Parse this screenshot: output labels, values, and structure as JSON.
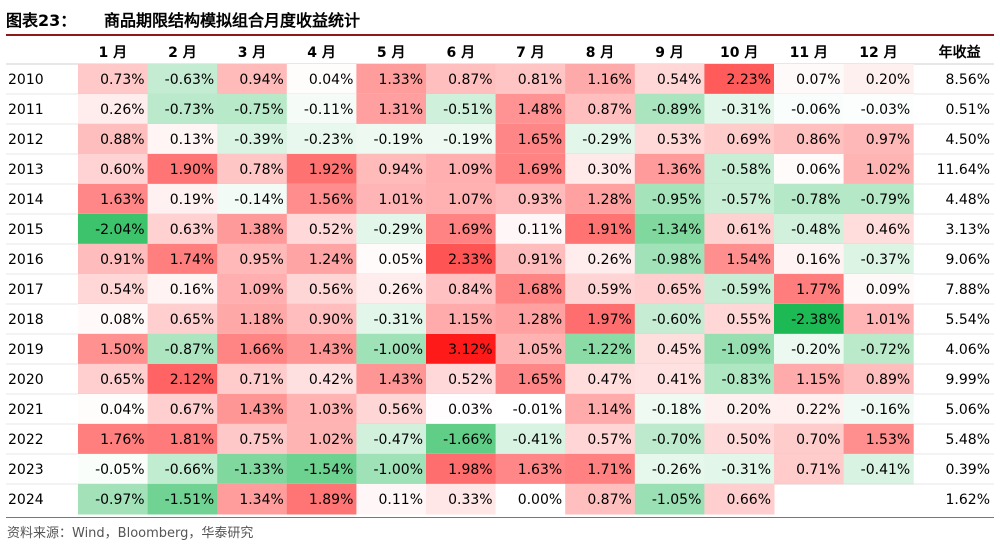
{
  "figure": {
    "label": "图表23：",
    "title": "商品期限结构模拟组合月度收益统计",
    "source": "资料来源：Wind，Bloomberg，华泰研究"
  },
  "colors": {
    "positive": "#ff1a1a",
    "negative": "#1db954",
    "zero": "#ffffff",
    "rule": "#8c1a1a"
  },
  "chart_data": {
    "type": "heatmap",
    "columns": [
      "1 月",
      "2 月",
      "3 月",
      "4 月",
      "5 月",
      "6 月",
      "7 月",
      "8 月",
      "9 月",
      "10 月",
      "11 月",
      "12 月",
      "年收益"
    ],
    "rows": [
      "2010",
      "2011",
      "2012",
      "2013",
      "2014",
      "2015",
      "2016",
      "2017",
      "2018",
      "2019",
      "2020",
      "2021",
      "2022",
      "2023",
      "2024"
    ],
    "unit": "%",
    "values": [
      [
        0.73,
        -0.63,
        0.94,
        0.04,
        1.33,
        0.87,
        0.81,
        1.16,
        0.54,
        2.23,
        0.07,
        0.2
      ],
      [
        0.26,
        -0.73,
        -0.75,
        -0.11,
        1.31,
        -0.51,
        1.48,
        0.87,
        -0.89,
        -0.31,
        -0.06,
        -0.03
      ],
      [
        0.88,
        0.13,
        -0.39,
        -0.23,
        -0.19,
        -0.19,
        1.65,
        -0.29,
        0.53,
        0.69,
        0.86,
        0.97
      ],
      [
        0.6,
        1.9,
        0.78,
        1.92,
        0.94,
        1.09,
        1.69,
        0.3,
        1.36,
        -0.58,
        0.06,
        1.02
      ],
      [
        1.63,
        0.19,
        -0.14,
        1.56,
        1.01,
        1.07,
        0.93,
        1.28,
        -0.95,
        -0.57,
        -0.78,
        -0.79
      ],
      [
        -2.04,
        0.63,
        1.38,
        0.52,
        -0.29,
        1.69,
        0.11,
        1.91,
        -1.34,
        0.61,
        -0.48,
        0.46
      ],
      [
        0.91,
        1.74,
        0.95,
        1.24,
        0.05,
        2.33,
        0.91,
        0.26,
        -0.98,
        1.54,
        0.16,
        -0.37
      ],
      [
        0.54,
        0.16,
        1.09,
        0.56,
        0.26,
        0.84,
        1.68,
        0.59,
        0.65,
        -0.59,
        1.77,
        0.09
      ],
      [
        0.08,
        0.65,
        1.18,
        0.9,
        -0.31,
        1.15,
        1.28,
        1.97,
        -0.6,
        0.55,
        -2.38,
        1.01
      ],
      [
        1.5,
        -0.87,
        1.66,
        1.43,
        -1.0,
        3.12,
        1.05,
        -1.22,
        0.45,
        -1.09,
        -0.2,
        -0.72
      ],
      [
        0.65,
        2.12,
        0.71,
        0.42,
        1.43,
        0.52,
        1.65,
        0.47,
        0.41,
        -0.83,
        1.15,
        0.89
      ],
      [
        0.04,
        0.67,
        1.43,
        1.03,
        0.56,
        0.03,
        -0.01,
        1.14,
        -0.18,
        0.2,
        0.22,
        -0.16
      ],
      [
        1.76,
        1.81,
        0.75,
        1.02,
        -0.47,
        -1.66,
        -0.41,
        0.57,
        -0.7,
        0.5,
        0.7,
        1.53
      ],
      [
        -0.05,
        -0.66,
        -1.33,
        -1.54,
        -1.0,
        1.98,
        1.63,
        1.71,
        -0.26,
        -0.31,
        0.71,
        -0.41
      ],
      [
        -0.97,
        -1.51,
        1.34,
        1.89,
        0.11,
        0.33,
        0.0,
        0.87,
        -1.05,
        0.66,
        null,
        null
      ]
    ],
    "annual": [
      8.56,
      0.51,
      4.5,
      11.64,
      4.48,
      3.13,
      9.06,
      7.88,
      5.54,
      4.06,
      9.99,
      5.06,
      5.48,
      0.39,
      1.62
    ]
  }
}
